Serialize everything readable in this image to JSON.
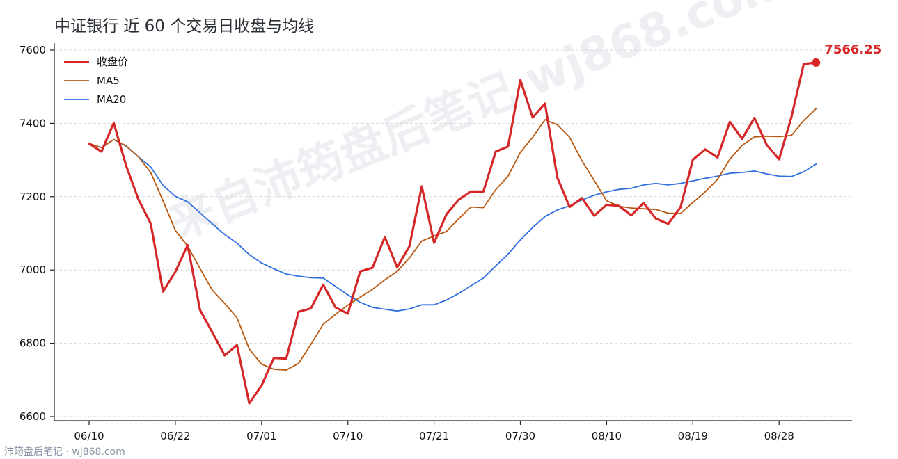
{
  "title": "中证银行 近 60 个交易日收盘与均线",
  "watermark": "来自沛筠盘后笔记 wj868.com",
  "footer": "沛筠盘后笔记 · wj868.com",
  "last_value_label": "7566.25",
  "colors": {
    "close": "#d62728",
    "ma5": "#b8580f",
    "ma20": "#2f6fe0"
  },
  "chart_data": {
    "type": "line",
    "title": "中证银行 近 60 个交易日收盘与均线",
    "ylim": [
      6600,
      7600
    ],
    "yticks": [
      6600,
      6800,
      7000,
      7200,
      7400,
      7600
    ],
    "xticks": [
      {
        "index": 0,
        "label": "06/10"
      },
      {
        "index": 7,
        "label": "06/22"
      },
      {
        "index": 14,
        "label": "07/01"
      },
      {
        "index": 21,
        "label": "07/10"
      },
      {
        "index": 28,
        "label": "07/21"
      },
      {
        "index": 35,
        "label": "07/30"
      },
      {
        "index": 42,
        "label": "08/10"
      },
      {
        "index": 49,
        "label": "08/19"
      },
      {
        "index": 56,
        "label": "08/28"
      }
    ],
    "legend_position": "top-left",
    "series": [
      {
        "name": "收盘价",
        "values": [
          7345,
          7323,
          7401,
          7285,
          7193,
          7127,
          6941,
          6995,
          7068,
          6891,
          6830,
          6767,
          6795,
          6636,
          6685,
          6760,
          6758,
          6886,
          6895,
          6960,
          6898,
          6881,
          6996,
          7006,
          7090,
          7007,
          7065,
          7228,
          7074,
          7152,
          7192,
          7214,
          7214,
          7323,
          7337,
          7518,
          7416,
          7454,
          7252,
          7172,
          7196,
          7148,
          7178,
          7175,
          7149,
          7183,
          7140,
          7126,
          7171,
          7301,
          7329,
          7307,
          7404,
          7358,
          7415,
          7341,
          7302,
          7417,
          7562,
          7566
        ]
      },
      {
        "name": "MA5",
        "values": [
          7345,
          7334,
          7356,
          7339,
          7309,
          7266,
          7189,
          7108,
          7065,
          7004,
          6945,
          6909,
          6870,
          6784,
          6743,
          6729,
          6727,
          6745,
          6797,
          6852,
          6879,
          6904,
          6926,
          6947,
          6973,
          6996,
          7033,
          7079,
          7093,
          7105,
          7140,
          7172,
          7170,
          7219,
          7256,
          7321,
          7362,
          7410,
          7396,
          7362,
          7298,
          7244,
          7189,
          7174,
          7169,
          7167,
          7165,
          7155,
          7154,
          7184,
          7213,
          7247,
          7302,
          7340,
          7363,
          7365,
          7364,
          7367,
          7408,
          7440
        ]
      },
      {
        "name": "MA20",
        "values": [
          7345,
          7334,
          7356,
          7338,
          7309,
          7281,
          7231,
          7201,
          7186,
          7156,
          7126,
          7097,
          7073,
          7042,
          7019,
          7003,
          6989,
          6983,
          6979,
          6978,
          6955,
          6932,
          6912,
          6898,
          6893,
          6888,
          6894,
          6905,
          6905,
          6918,
          6936,
          6957,
          6978,
          7011,
          7043,
          7082,
          7116,
          7146,
          7164,
          7175,
          7191,
          7204,
          7213,
          7220,
          7223,
          7232,
          7236,
          7232,
          7236,
          7243,
          7250,
          7256,
          7264,
          7266,
          7270,
          7262,
          7256,
          7255,
          7268,
          7289
        ]
      }
    ]
  }
}
